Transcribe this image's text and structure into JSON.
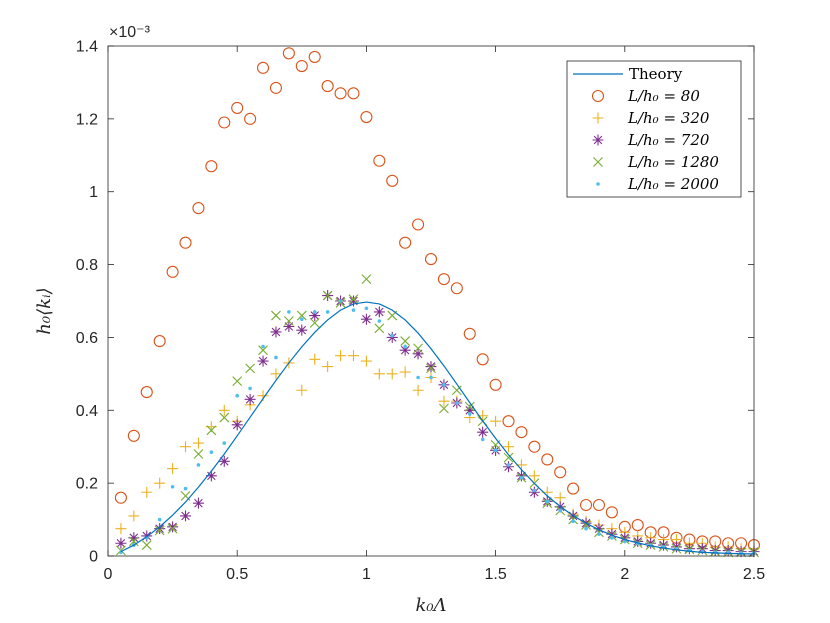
{
  "chart_data": {
    "type": "scatter",
    "title": "",
    "xlabel": "k₀Λ",
    "ylabel": "h₀⟨kᵢ⟩",
    "xlim": [
      0,
      2.5
    ],
    "ylim": [
      0,
      1.4
    ],
    "y_exponent_label": "×10⁻³",
    "x_ticks": [
      0,
      0.5,
      1,
      1.5,
      2,
      2.5
    ],
    "x_tick_labels": [
      "0",
      "0.5",
      "1",
      "1.5",
      "2",
      "2.5"
    ],
    "y_ticks": [
      0,
      0.2,
      0.4,
      0.6,
      0.8,
      1.0,
      1.2,
      1.4
    ],
    "y_tick_labels": [
      "0",
      "0.2",
      "0.4",
      "0.6",
      "0.8",
      "1",
      "1.2",
      "1.4"
    ],
    "grid": false,
    "legend_position": "top-right",
    "series": [
      {
        "name": "Theory",
        "label": "Theory",
        "kind": "line",
        "color": "#0072BD",
        "x": [
          0.05,
          0.1,
          0.15,
          0.2,
          0.25,
          0.3,
          0.35,
          0.4,
          0.45,
          0.5,
          0.55,
          0.6,
          0.65,
          0.7,
          0.75,
          0.8,
          0.85,
          0.9,
          0.95,
          1.0,
          1.05,
          1.1,
          1.15,
          1.2,
          1.25,
          1.3,
          1.35,
          1.4,
          1.45,
          1.5,
          1.55,
          1.6,
          1.65,
          1.7,
          1.75,
          1.8,
          1.85,
          1.9,
          1.95,
          2.0,
          2.05,
          2.1,
          2.15,
          2.2,
          2.25,
          2.3,
          2.35,
          2.4,
          2.45,
          2.5
        ],
        "y": [
          0.012,
          0.03,
          0.053,
          0.08,
          0.112,
          0.148,
          0.189,
          0.233,
          0.28,
          0.33,
          0.381,
          0.432,
          0.482,
          0.53,
          0.574,
          0.614,
          0.648,
          0.675,
          0.692,
          0.697,
          0.692,
          0.675,
          0.648,
          0.612,
          0.569,
          0.522,
          0.472,
          0.421,
          0.371,
          0.323,
          0.278,
          0.237,
          0.199,
          0.165,
          0.136,
          0.111,
          0.09,
          0.072,
          0.057,
          0.045,
          0.036,
          0.028,
          0.022,
          0.017,
          0.013,
          0.01,
          0.0085,
          0.0072,
          0.0062,
          0.0055
        ]
      },
      {
        "name": "L80",
        "label": "L/h₀ = 80",
        "kind": "circle",
        "color": "#D95319",
        "x": [
          0.05,
          0.1,
          0.15,
          0.2,
          0.25,
          0.3,
          0.35,
          0.4,
          0.45,
          0.5,
          0.55,
          0.6,
          0.65,
          0.7,
          0.75,
          0.8,
          0.85,
          0.9,
          0.95,
          1.0,
          1.05,
          1.1,
          1.15,
          1.2,
          1.25,
          1.3,
          1.35,
          1.4,
          1.45,
          1.5,
          1.55,
          1.6,
          1.65,
          1.7,
          1.75,
          1.8,
          1.85,
          1.9,
          1.95,
          2.0,
          2.05,
          2.1,
          2.15,
          2.2,
          2.25,
          2.3,
          2.35,
          2.4,
          2.45,
          2.5
        ],
        "y": [
          0.16,
          0.33,
          0.45,
          0.59,
          0.78,
          0.86,
          0.955,
          1.07,
          1.19,
          1.23,
          1.2,
          1.34,
          1.285,
          1.38,
          1.345,
          1.37,
          1.29,
          1.27,
          1.27,
          1.205,
          1.085,
          1.03,
          0.86,
          0.91,
          0.815,
          0.76,
          0.735,
          0.61,
          0.54,
          0.47,
          0.37,
          0.34,
          0.3,
          0.265,
          0.23,
          0.185,
          0.14,
          0.14,
          0.12,
          0.08,
          0.085,
          0.065,
          0.065,
          0.05,
          0.045,
          0.04,
          0.04,
          0.035,
          0.035,
          0.03
        ]
      },
      {
        "name": "L320",
        "label": "L/h₀ = 320",
        "kind": "plus",
        "color": "#EDB120",
        "x": [
          0.05,
          0.1,
          0.15,
          0.2,
          0.25,
          0.3,
          0.35,
          0.4,
          0.45,
          0.5,
          0.55,
          0.6,
          0.65,
          0.7,
          0.75,
          0.8,
          0.85,
          0.9,
          0.95,
          1.0,
          1.05,
          1.1,
          1.15,
          1.2,
          1.25,
          1.3,
          1.35,
          1.4,
          1.45,
          1.5,
          1.55,
          1.6,
          1.65,
          1.7,
          1.75,
          1.8,
          1.85,
          1.9,
          1.95,
          2.0,
          2.05,
          2.1,
          2.15,
          2.2,
          2.25,
          2.3,
          2.35,
          2.4,
          2.45,
          2.5
        ],
        "y": [
          0.075,
          0.11,
          0.175,
          0.2,
          0.24,
          0.3,
          0.31,
          0.355,
          0.4,
          0.37,
          0.415,
          0.44,
          0.5,
          0.53,
          0.455,
          0.54,
          0.52,
          0.55,
          0.55,
          0.535,
          0.5,
          0.5,
          0.505,
          0.455,
          0.49,
          0.425,
          0.425,
          0.38,
          0.385,
          0.37,
          0.3,
          0.25,
          0.22,
          0.175,
          0.16,
          0.115,
          0.095,
          0.085,
          0.075,
          0.065,
          0.055,
          0.05,
          0.045,
          0.045,
          0.035,
          0.035,
          0.025,
          0.025,
          0.02,
          0.02
        ]
      },
      {
        "name": "L720",
        "label": "L/h₀ = 720",
        "kind": "asterisk",
        "color": "#7E2F8E",
        "x": [
          0.05,
          0.1,
          0.15,
          0.2,
          0.25,
          0.3,
          0.35,
          0.4,
          0.45,
          0.5,
          0.55,
          0.6,
          0.65,
          0.7,
          0.75,
          0.8,
          0.85,
          0.9,
          0.95,
          1.0,
          1.05,
          1.1,
          1.15,
          1.2,
          1.25,
          1.3,
          1.35,
          1.4,
          1.45,
          1.5,
          1.55,
          1.6,
          1.65,
          1.7,
          1.75,
          1.8,
          1.85,
          1.9,
          1.95,
          2.0,
          2.05,
          2.1,
          2.15,
          2.2,
          2.25,
          2.3,
          2.35,
          2.4,
          2.45,
          2.5
        ],
        "y": [
          0.035,
          0.05,
          0.055,
          0.075,
          0.08,
          0.11,
          0.145,
          0.22,
          0.26,
          0.36,
          0.43,
          0.535,
          0.615,
          0.63,
          0.62,
          0.66,
          0.715,
          0.7,
          0.7,
          0.65,
          0.67,
          0.6,
          0.565,
          0.555,
          0.52,
          0.47,
          0.42,
          0.4,
          0.34,
          0.29,
          0.245,
          0.22,
          0.175,
          0.15,
          0.135,
          0.11,
          0.09,
          0.075,
          0.06,
          0.05,
          0.04,
          0.035,
          0.03,
          0.025,
          0.02,
          0.02,
          0.015,
          0.015,
          0.012,
          0.012
        ]
      },
      {
        "name": "L1280",
        "label": "L/h₀ = 1280",
        "kind": "cross",
        "color": "#77AC30",
        "x": [
          0.05,
          0.1,
          0.15,
          0.2,
          0.25,
          0.3,
          0.35,
          0.4,
          0.45,
          0.5,
          0.55,
          0.6,
          0.65,
          0.7,
          0.75,
          0.8,
          0.85,
          0.9,
          0.95,
          1.0,
          1.05,
          1.1,
          1.15,
          1.2,
          1.25,
          1.3,
          1.35,
          1.4,
          1.45,
          1.5,
          1.55,
          1.6,
          1.65,
          1.7,
          1.75,
          1.8,
          1.85,
          1.9,
          1.95,
          2.0,
          2.05,
          2.1,
          2.15,
          2.2,
          2.25,
          2.3,
          2.35,
          2.4,
          2.45,
          2.5
        ],
        "y": [
          0.015,
          0.04,
          0.03,
          0.07,
          0.075,
          0.165,
          0.28,
          0.345,
          0.38,
          0.48,
          0.515,
          0.565,
          0.66,
          0.645,
          0.66,
          0.64,
          0.715,
          0.695,
          0.705,
          0.76,
          0.625,
          0.66,
          0.59,
          0.57,
          0.515,
          0.405,
          0.455,
          0.41,
          0.37,
          0.305,
          0.27,
          0.215,
          0.2,
          0.145,
          0.125,
          0.1,
          0.085,
          0.065,
          0.055,
          0.045,
          0.035,
          0.03,
          0.025,
          0.02,
          0.018,
          0.015,
          0.012,
          0.01,
          0.01,
          0.01
        ]
      },
      {
        "name": "L2000",
        "label": "L/h₀ = 2000",
        "kind": "dot",
        "color": "#4DBEEE",
        "x": [
          0.05,
          0.1,
          0.15,
          0.2,
          0.25,
          0.3,
          0.35,
          0.4,
          0.45,
          0.5,
          0.55,
          0.6,
          0.65,
          0.7,
          0.75,
          0.8,
          0.85,
          0.9,
          0.95,
          1.0,
          1.05,
          1.1,
          1.15,
          1.2,
          1.25,
          1.3,
          1.35,
          1.4,
          1.45,
          1.5,
          1.55,
          1.6,
          1.65,
          1.7,
          1.75,
          1.8,
          1.85,
          1.9,
          1.95,
          2.0,
          2.05,
          2.1,
          2.15,
          2.2,
          2.25,
          2.3,
          2.35,
          2.4,
          2.45,
          2.5
        ],
        "y": [
          0.01,
          0.03,
          0.05,
          0.1,
          0.19,
          0.185,
          0.25,
          0.285,
          0.31,
          0.44,
          0.46,
          0.575,
          0.545,
          0.67,
          0.65,
          0.67,
          0.67,
          0.7,
          0.675,
          0.68,
          0.645,
          0.605,
          0.575,
          0.49,
          0.49,
          0.47,
          0.42,
          0.39,
          0.32,
          0.29,
          0.25,
          0.215,
          0.18,
          0.15,
          0.125,
          0.095,
          0.075,
          0.06,
          0.05,
          0.04,
          0.035,
          0.03,
          0.025,
          0.02,
          0.015,
          0.012,
          0.01,
          0.01,
          0.008,
          0.008
        ]
      }
    ]
  },
  "legend": {
    "items": [
      {
        "label": "Theory"
      },
      {
        "label": "L/h₀ = 80"
      },
      {
        "label": "L/h₀ = 320"
      },
      {
        "label": "L/h₀ = 720"
      },
      {
        "label": "L/h₀ = 1280"
      },
      {
        "label": "L/h₀ = 2000"
      }
    ]
  }
}
